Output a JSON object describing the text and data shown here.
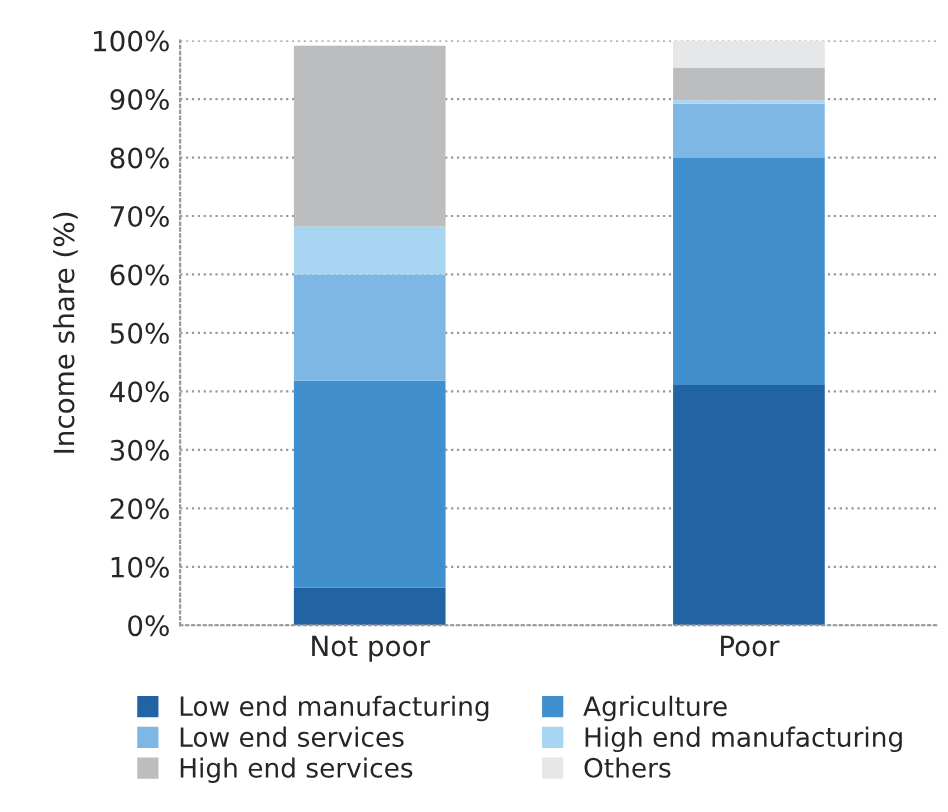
{
  "chart_data": {
    "type": "bar",
    "stacked": true,
    "ylabel": "Income share (%)",
    "categories": [
      "Not poor",
      "Poor"
    ],
    "series": [
      {
        "name": "Low end manufacturing",
        "color": "#2163a3",
        "values": [
          6.4,
          41.1
        ]
      },
      {
        "name": "Agriculture",
        "color": "#428fcd",
        "values": [
          35.4,
          38.8
        ]
      },
      {
        "name": "Low end services",
        "color": "#7eb7e3",
        "values": [
          18.2,
          9.3
        ]
      },
      {
        "name": "High end manufacturing",
        "color": "#a8d5f2",
        "values": [
          8.2,
          0.6
        ]
      },
      {
        "name": "High end services",
        "color": "#bcbdbf",
        "values": [
          30.9,
          5.5
        ]
      },
      {
        "name": "Others",
        "color": "#e6e7e8",
        "values": [
          0,
          4.7
        ]
      }
    ],
    "ylim": [
      0,
      100
    ],
    "yticks": [
      {
        "value": 0,
        "label": "0%"
      },
      {
        "value": 10,
        "label": "10%"
      },
      {
        "value": 20,
        "label": "20%"
      },
      {
        "value": 30,
        "label": "30%"
      },
      {
        "value": 40,
        "label": "40%"
      },
      {
        "value": 50,
        "label": "50%"
      },
      {
        "value": 60,
        "label": "60%"
      },
      {
        "value": 70,
        "label": "70%"
      },
      {
        "value": 80,
        "label": "80%"
      },
      {
        "value": 90,
        "label": "90%"
      },
      {
        "value": 100,
        "label": "100%"
      }
    ],
    "grid": "y",
    "legend": "bottom"
  }
}
